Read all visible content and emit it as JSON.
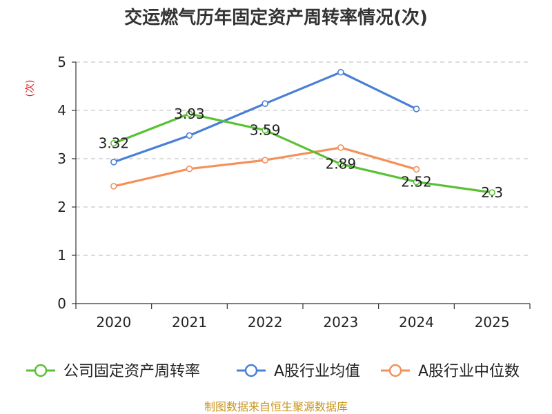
{
  "chart_data": {
    "type": "line",
    "title": "交运燃气历年固定资产周转率情况(次)",
    "ylabel": "(次)",
    "xlabel": "",
    "categories": [
      "2020",
      "2021",
      "2022",
      "2023",
      "2024",
      "2025"
    ],
    "ylim": [
      0,
      5
    ],
    "yticks": [
      0,
      1,
      2,
      3,
      4,
      5
    ],
    "grid": true,
    "legend_position": "bottom",
    "series": [
      {
        "name": "公司固定资产周转率",
        "color": "#5ac134",
        "values": [
          3.32,
          3.93,
          3.59,
          2.89,
          2.52,
          2.3
        ],
        "labels": [
          "3.32",
          "3.93",
          "3.59",
          "2.89",
          "2.52",
          "2.3"
        ]
      },
      {
        "name": "A股行业均值",
        "color": "#4a7fd6",
        "values": [
          2.93,
          3.48,
          4.14,
          4.79,
          4.03,
          null
        ]
      },
      {
        "name": "A股行业中位数",
        "color": "#f59058",
        "values": [
          2.43,
          2.79,
          2.97,
          3.23,
          2.78,
          null
        ]
      }
    ]
  },
  "source": "制图数据来自恒生聚源数据库"
}
